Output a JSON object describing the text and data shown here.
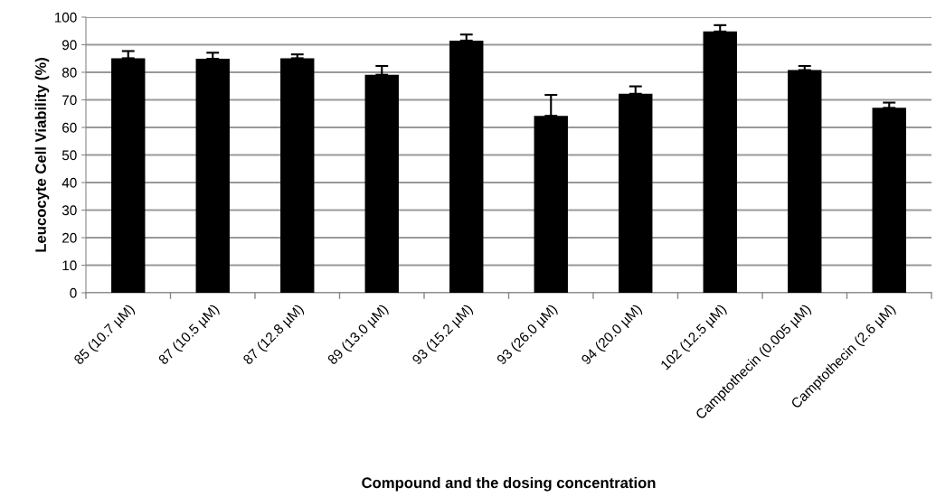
{
  "chart_data": {
    "type": "bar",
    "xlabel": "Compound and the dosing concentration",
    "ylabel": "Leucocyte Cell Viability (%)",
    "categories": [
      "85 (10.7 µM)",
      "87 (10.5 µM)",
      "87 (12.8 µM)",
      "89 (13.0 µM)",
      "93 (15.2 µM)",
      "93 (26.0 µM)",
      "94 (20.0 µM)",
      "102 (12.5 µM)",
      "Camptothecin (0.005 µM)",
      "Camptothecin (2.6 µM)"
    ],
    "values": [
      85.1,
      84.9,
      85.1,
      79.1,
      91.5,
      64.2,
      72.2,
      94.8,
      80.8,
      67.1
    ],
    "errors": [
      [
        85.1,
        87.7
      ],
      [
        84.9,
        87.1
      ],
      [
        85.1,
        86.5
      ],
      [
        79.1,
        82.3
      ],
      [
        91.5,
        93.7
      ],
      [
        64.2,
        71.8
      ],
      [
        72.2,
        74.9
      ],
      [
        94.8,
        97.1
      ],
      [
        80.8,
        82.3
      ],
      [
        67.1,
        69.0
      ]
    ],
    "color": "#000000",
    "ylim": [
      0,
      100
    ],
    "yticks": [
      0,
      10,
      20,
      30,
      40,
      50,
      60,
      70,
      80,
      90,
      100
    ],
    "grid": "y"
  }
}
